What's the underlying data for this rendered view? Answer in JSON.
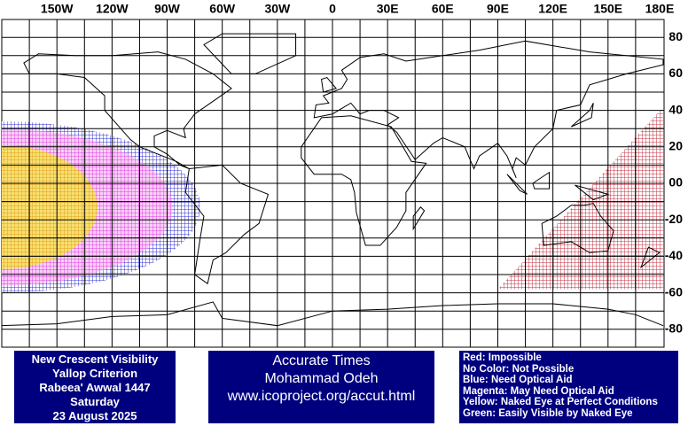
{
  "map": {
    "lon_labels": [
      "150W",
      "120W",
      "90W",
      "60W",
      "30W",
      "0",
      "30E",
      "60E",
      "90E",
      "120E",
      "150E",
      "180E"
    ],
    "lat_labels": [
      "80",
      "60",
      "40",
      "20",
      "00",
      "-20",
      "-40",
      "-60",
      "-80"
    ]
  },
  "info_box": {
    "lines": [
      "New Crescent Visibility",
      "Yallop Criterion",
      "Rabeea' Awwal 1447",
      "Saturday",
      "23 August 2025"
    ]
  },
  "author_box": {
    "lines": [
      "Accurate Times",
      "Mohammad Odeh",
      "www.icoproject.org/accut.html"
    ]
  },
  "legend": {
    "items": [
      "Red: Impossible",
      "No Color: Not Possible",
      "Blue: Need Optical Aid",
      "Magenta: May Need Optical Aid",
      "Yellow: Naked Eye at Perfect Conditions",
      "Green: Easily Visible by Naked Eye"
    ]
  }
}
